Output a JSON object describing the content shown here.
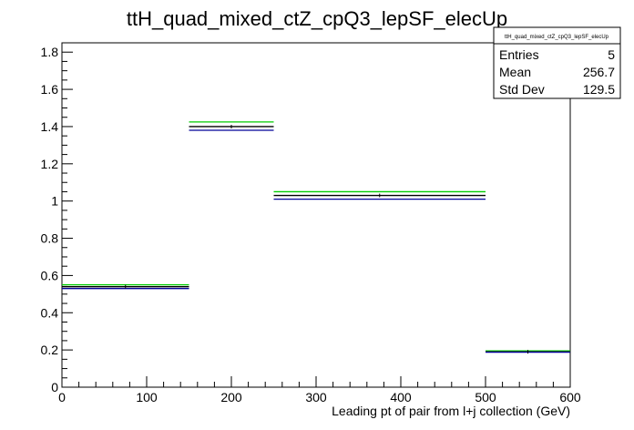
{
  "chart_data": {
    "type": "step-histogram",
    "title": "ttH_quad_mixed_ctZ_cpQ3_lepSF_elecUp",
    "xlabel": "Leading pt of pair from l+j collection (GeV)",
    "ylabel": "",
    "xlim": [
      0,
      600
    ],
    "ylim": [
      0,
      1.85
    ],
    "x_ticks": [
      0,
      100,
      200,
      300,
      400,
      500,
      600
    ],
    "x_tick_labels": [
      "0",
      "100",
      "200",
      "300",
      "400",
      "500",
      "600"
    ],
    "y_ticks": [
      0,
      0.2,
      0.4,
      0.6,
      0.8,
      1.0,
      1.2,
      1.4,
      1.6,
      1.8
    ],
    "y_tick_labels": [
      "0",
      "0.2",
      "0.4",
      "0.6",
      "0.8",
      "1",
      "1.2",
      "1.4",
      "1.6",
      "1.8"
    ],
    "bin_edges": [
      0,
      150,
      250,
      500,
      600
    ],
    "series": [
      {
        "color": "#00cc00",
        "values": [
          0.55,
          1.425,
          1.05,
          0.195
        ]
      },
      {
        "color": "#000000",
        "values": [
          0.54,
          1.4,
          1.03,
          0.19
        ]
      },
      {
        "color": "#000099",
        "values": [
          0.53,
          1.38,
          1.01,
          0.188
        ]
      }
    ],
    "stats_box": {
      "title": "ttH_quad_mixed_ctZ_cpQ3_lepSF_elecUp",
      "rows": [
        {
          "label": "Entries",
          "value": "5"
        },
        {
          "label": "Mean",
          "value": "256.7"
        },
        {
          "label": "Std Dev",
          "value": "129.5"
        }
      ]
    },
    "grid": false,
    "legend": "none"
  }
}
